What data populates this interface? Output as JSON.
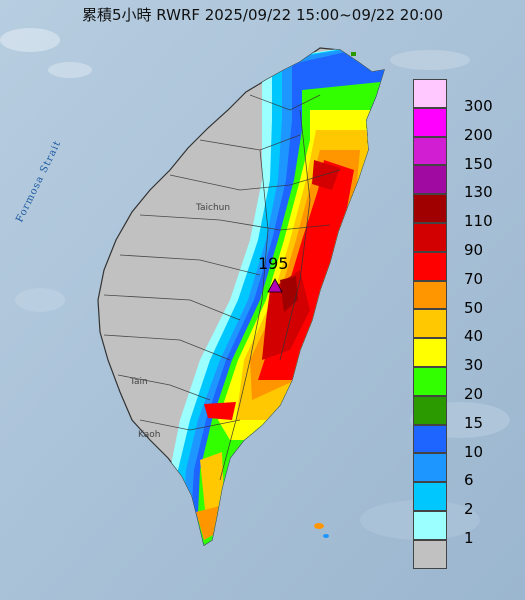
{
  "title": "累積5小時 RWRF 2025/09/22 15:00~09/22 20:00",
  "map_labels": {
    "strait": "Formosa Strait",
    "taichung": "Taichun",
    "tainan": "Tain",
    "kaohsiung": "Kaoh"
  },
  "peak": {
    "value": "195"
  },
  "legend": {
    "items": [
      {
        "label": "300",
        "color": "#ffc8ff"
      },
      {
        "label": "200",
        "color": "#ff00ff"
      },
      {
        "label": "150",
        "color": "#d21ed2"
      },
      {
        "label": "130",
        "color": "#a00aa0"
      },
      {
        "label": "110",
        "color": "#a00000"
      },
      {
        "label": "90",
        "color": "#d20000"
      },
      {
        "label": "70",
        "color": "#ff0000"
      },
      {
        "label": "50",
        "color": "#ff9600"
      },
      {
        "label": "40",
        "color": "#ffc800"
      },
      {
        "label": "30",
        "color": "#ffff00"
      },
      {
        "label": "20",
        "color": "#32ff00"
      },
      {
        "label": "15",
        "color": "#2a9a00"
      },
      {
        "label": "10",
        "color": "#1e64ff"
      },
      {
        "label": "6",
        "color": "#1e96ff"
      },
      {
        "label": "2",
        "color": "#00c8ff"
      },
      {
        "label": "1",
        "color": "#9bffff"
      },
      {
        "label": "",
        "color": "#c1c1c1"
      }
    ]
  },
  "colors": {
    "sea": "#a9c2d8",
    "land_dry": "#c1c1c1"
  }
}
